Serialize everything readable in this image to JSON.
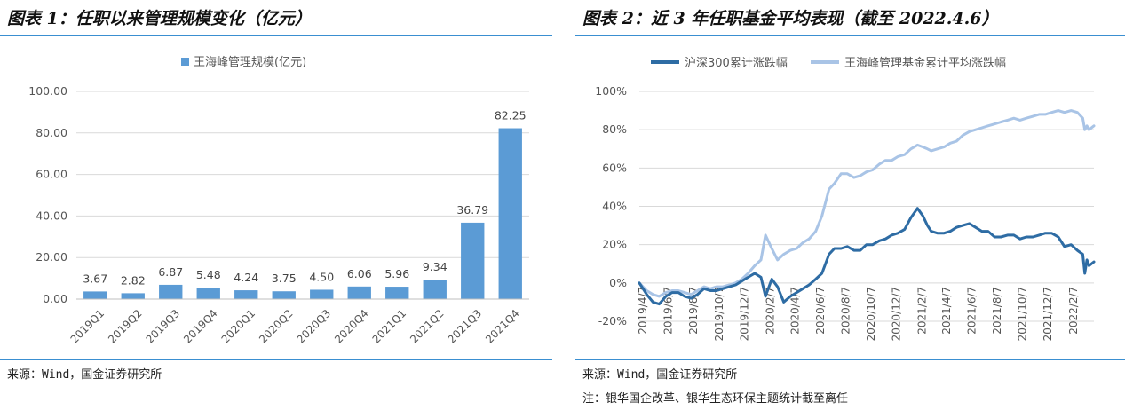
{
  "left": {
    "figure_title": "图表 1：任职以来管理规模变化（亿元）",
    "source": "来源：Wind，国金证券研究所",
    "note": "",
    "chart_data": {
      "type": "bar",
      "title": "",
      "xlabel": "",
      "ylabel": "",
      "legend": "王海峰管理规模(亿元)",
      "legend_position": "top",
      "color": "#5b9bd5",
      "grid": true,
      "categories": [
        "2019Q1",
        "2019Q2",
        "2019Q3",
        "2019Q4",
        "2020Q1",
        "2020Q2",
        "2020Q3",
        "2020Q4",
        "2021Q1",
        "2021Q2",
        "2021Q3",
        "2021Q4"
      ],
      "values": [
        3.67,
        2.82,
        6.87,
        5.48,
        4.24,
        3.75,
        4.5,
        6.06,
        5.96,
        9.34,
        36.79,
        82.25
      ],
      "value_labels": [
        "3.67",
        "2.82",
        "6.87",
        "5.48",
        "4.24",
        "3.75",
        "4.50",
        "6.06",
        "5.96",
        "9.34",
        "36.79",
        "82.25"
      ],
      "ylim": [
        0,
        100
      ],
      "yticks": [
        0,
        20,
        40,
        60,
        80,
        100
      ],
      "ytick_labels": [
        "0.00",
        "20.00",
        "40.00",
        "60.00",
        "80.00",
        "100.00"
      ]
    }
  },
  "right": {
    "figure_title": "图表 2：近 3 年任职基金平均表现（截至 2022.4.6）",
    "source": "来源：Wind，国金证券研究所",
    "note": "注：银华国企改革、银华生态环保主题统计截至离任",
    "chart_data": {
      "type": "line",
      "title": "",
      "xlabel": "",
      "ylabel": "",
      "legend_position": "top",
      "grid": true,
      "ylim": [
        -0.2,
        1.0
      ],
      "yticks": [
        -0.2,
        0,
        0.2,
        0.4,
        0.6,
        0.8,
        1.0
      ],
      "ytick_labels": [
        "-20%",
        "0%",
        "20%",
        "40%",
        "60%",
        "80%",
        "100%"
      ],
      "xtick_labels": [
        "2019/4/7",
        "2019/6/7",
        "2019/8/7",
        "2019/10/7",
        "2019/12/7",
        "2020/2/7",
        "2020/4/7",
        "2020/6/7",
        "2020/8/7",
        "2020/10/7",
        "2020/12/7",
        "2021/2/7",
        "2021/4/7",
        "2021/6/7",
        "2021/8/7",
        "2021/10/7",
        "2021/12/7",
        "2022/2/7"
      ],
      "x_start": "2019/4/7",
      "x_end": "2022/4/6",
      "series": [
        {
          "name": "沪深300累计涨跌幅",
          "color": "#2e6ca4",
          "x": [
            "2019/4/7",
            "2019/4/25",
            "2019/5/10",
            "2019/5/25",
            "2019/6/10",
            "2019/6/25",
            "2019/7/10",
            "2019/7/25",
            "2019/8/10",
            "2019/8/25",
            "2019/9/10",
            "2019/9/25",
            "2019/10/10",
            "2019/10/25",
            "2019/11/10",
            "2019/11/25",
            "2019/12/10",
            "2019/12/25",
            "2020/1/10",
            "2020/1/25",
            "2020/2/5",
            "2020/2/20",
            "2020/3/5",
            "2020/3/20",
            "2020/4/5",
            "2020/4/20",
            "2020/5/5",
            "2020/5/20",
            "2020/6/5",
            "2020/6/20",
            "2020/7/7",
            "2020/7/20",
            "2020/8/5",
            "2020/8/20",
            "2020/9/5",
            "2020/9/20",
            "2020/10/5",
            "2020/10/20",
            "2020/11/5",
            "2020/11/20",
            "2020/12/5",
            "2020/12/20",
            "2021/1/5",
            "2021/1/20",
            "2021/2/5",
            "2021/2/18",
            "2021/3/1",
            "2021/3/10",
            "2021/3/25",
            "2021/4/10",
            "2021/4/25",
            "2021/5/10",
            "2021/5/25",
            "2021/6/10",
            "2021/6/25",
            "2021/7/10",
            "2021/7/25",
            "2021/8/10",
            "2021/8/25",
            "2021/9/10",
            "2021/9/25",
            "2021/10/10",
            "2021/10/25",
            "2021/11/10",
            "2021/11/25",
            "2021/12/10",
            "2021/12/25",
            "2022/1/10",
            "2022/1/25",
            "2022/2/10",
            "2022/2/25",
            "2022/3/10",
            "2022/3/15",
            "2022/3/20",
            "2022/3/25",
            "2022/4/6"
          ],
          "y": [
            0.0,
            -0.06,
            -0.1,
            -0.11,
            -0.07,
            -0.05,
            -0.05,
            -0.07,
            -0.08,
            -0.06,
            -0.03,
            -0.04,
            -0.04,
            -0.03,
            -0.02,
            -0.01,
            0.01,
            0.03,
            0.05,
            0.03,
            -0.07,
            0.02,
            -0.02,
            -0.1,
            -0.07,
            -0.05,
            -0.03,
            -0.01,
            0.02,
            0.05,
            0.15,
            0.18,
            0.18,
            0.19,
            0.17,
            0.17,
            0.2,
            0.2,
            0.22,
            0.23,
            0.25,
            0.26,
            0.28,
            0.34,
            0.39,
            0.35,
            0.3,
            0.27,
            0.26,
            0.26,
            0.27,
            0.29,
            0.3,
            0.31,
            0.29,
            0.27,
            0.27,
            0.24,
            0.24,
            0.25,
            0.25,
            0.23,
            0.24,
            0.24,
            0.25,
            0.26,
            0.26,
            0.24,
            0.19,
            0.2,
            0.17,
            0.15,
            0.05,
            0.12,
            0.09,
            0.11
          ]
        },
        {
          "name": "王海峰管理基金累计平均涨跌幅",
          "color": "#a9c4e6",
          "x": [
            "2019/4/7",
            "2019/4/25",
            "2019/5/10",
            "2019/5/25",
            "2019/6/10",
            "2019/6/25",
            "2019/7/10",
            "2019/7/25",
            "2019/8/10",
            "2019/8/25",
            "2019/9/10",
            "2019/9/25",
            "2019/10/10",
            "2019/10/25",
            "2019/11/10",
            "2019/11/25",
            "2019/12/10",
            "2019/12/25",
            "2020/1/10",
            "2020/1/25",
            "2020/2/5",
            "2020/2/20",
            "2020/3/5",
            "2020/3/20",
            "2020/4/5",
            "2020/4/20",
            "2020/5/5",
            "2020/5/20",
            "2020/6/5",
            "2020/6/20",
            "2020/7/7",
            "2020/7/20",
            "2020/8/5",
            "2020/8/20",
            "2020/9/5",
            "2020/9/20",
            "2020/10/5",
            "2020/10/20",
            "2020/11/5",
            "2020/11/20",
            "2020/12/5",
            "2020/12/20",
            "2021/1/5",
            "2021/1/20",
            "2021/2/5",
            "2021/2/18",
            "2021/3/1",
            "2021/3/10",
            "2021/3/25",
            "2021/4/10",
            "2021/4/25",
            "2021/5/10",
            "2021/5/25",
            "2021/6/10",
            "2021/6/25",
            "2021/7/10",
            "2021/7/25",
            "2021/8/10",
            "2021/8/25",
            "2021/9/10",
            "2021/9/25",
            "2021/10/10",
            "2021/10/25",
            "2021/11/10",
            "2021/11/25",
            "2021/12/10",
            "2021/12/25",
            "2022/1/10",
            "2022/1/25",
            "2022/2/10",
            "2022/2/25",
            "2022/3/10",
            "2022/3/15",
            "2022/3/20",
            "2022/3/25",
            "2022/4/6"
          ],
          "y": [
            0.0,
            -0.04,
            -0.06,
            -0.07,
            -0.05,
            -0.04,
            -0.04,
            -0.05,
            -0.06,
            -0.04,
            -0.02,
            -0.03,
            -0.02,
            -0.02,
            -0.01,
            0.0,
            0.02,
            0.05,
            0.09,
            0.12,
            0.25,
            0.18,
            0.12,
            0.15,
            0.17,
            0.18,
            0.21,
            0.23,
            0.27,
            0.35,
            0.49,
            0.52,
            0.57,
            0.57,
            0.55,
            0.56,
            0.58,
            0.59,
            0.62,
            0.64,
            0.64,
            0.66,
            0.67,
            0.7,
            0.72,
            0.71,
            0.7,
            0.69,
            0.7,
            0.71,
            0.73,
            0.74,
            0.77,
            0.79,
            0.8,
            0.81,
            0.82,
            0.83,
            0.84,
            0.85,
            0.86,
            0.85,
            0.86,
            0.87,
            0.88,
            0.88,
            0.89,
            0.9,
            0.89,
            0.9,
            0.89,
            0.86,
            0.8,
            0.82,
            0.8,
            0.82
          ]
        }
      ]
    }
  }
}
